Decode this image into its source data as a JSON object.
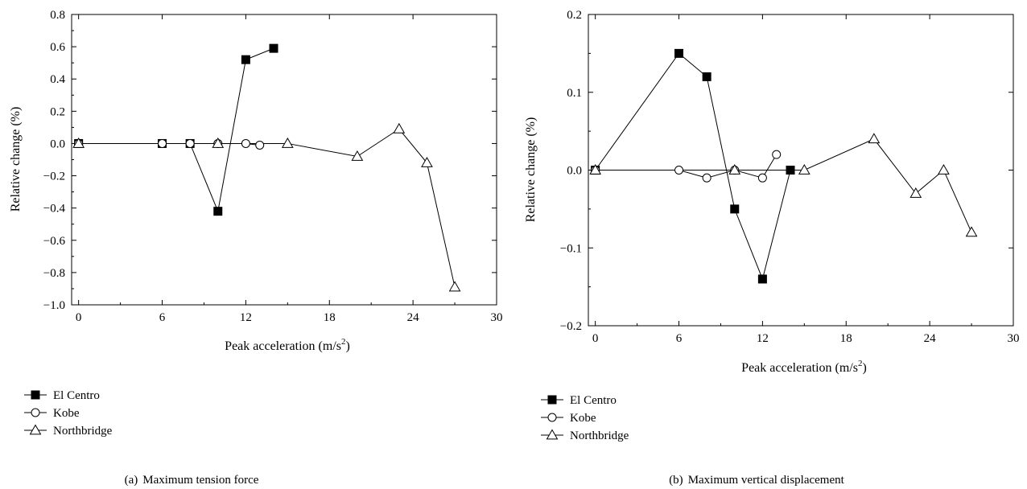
{
  "chart_data": [
    {
      "type": "line",
      "panel_label": "(a)",
      "caption": "Maximum tension force",
      "xlabel": "Peak acceleration (m/s",
      "xlabel_sup": "2",
      "xlabel_end": ")",
      "ylabel": "Relative change (%)",
      "xlim": [
        -0.5,
        30
      ],
      "ylim": [
        -1.0,
        0.8
      ],
      "xticks": [
        0,
        6,
        12,
        18,
        24,
        30
      ],
      "xtick_labels": [
        "0",
        "6",
        "12",
        "18",
        "24",
        "30"
      ],
      "yticks": [
        -1.0,
        -0.8,
        -0.6,
        -0.4,
        -0.2,
        0.0,
        0.2,
        0.4,
        0.6,
        0.8
      ],
      "ytick_labels": [
        "−1.0",
        "−0.8",
        "−0.6",
        "−0.4",
        "−0.2",
        "0.0",
        "0.2",
        "0.4",
        "0.6",
        "0.8"
      ],
      "grid": false,
      "legend_position": "below",
      "series": [
        {
          "name": "El Centro",
          "marker": "filled-square",
          "x": [
            0,
            6,
            8,
            10,
            12,
            14
          ],
          "y": [
            0,
            0,
            0,
            -0.42,
            0.52,
            0.59
          ]
        },
        {
          "name": "Kobe",
          "marker": "open-circle",
          "x": [
            0,
            6,
            8,
            10,
            12,
            13
          ],
          "y": [
            0,
            0,
            0,
            0,
            0,
            -0.01
          ]
        },
        {
          "name": "Northbridge",
          "marker": "open-triangle",
          "x": [
            0,
            10,
            15,
            20,
            23,
            25,
            27
          ],
          "y": [
            0,
            0,
            0,
            -0.08,
            0.09,
            -0.12,
            -0.89
          ]
        }
      ]
    },
    {
      "type": "line",
      "panel_label": "(b)",
      "caption": "Maximum vertical displacement",
      "xlabel": "Peak acceleration (m/s",
      "xlabel_sup": "2",
      "xlabel_end": ")",
      "ylabel": "Relative change (%)",
      "xlim": [
        -0.5,
        30
      ],
      "ylim": [
        -0.2,
        0.2
      ],
      "xticks": [
        0,
        6,
        12,
        18,
        24,
        30
      ],
      "xtick_labels": [
        "0",
        "6",
        "12",
        "18",
        "24",
        "30"
      ],
      "yticks": [
        -0.2,
        -0.1,
        0.0,
        0.1,
        0.2
      ],
      "ytick_labels": [
        "−0.2",
        "−0.1",
        "0.0",
        "0.1",
        "0.2"
      ],
      "grid": false,
      "legend_position": "below",
      "series": [
        {
          "name": "El Centro",
          "marker": "filled-square",
          "x": [
            0,
            6,
            8,
            10,
            12,
            14
          ],
          "y": [
            0,
            0.15,
            0.12,
            -0.05,
            -0.14,
            0
          ]
        },
        {
          "name": "Kobe",
          "marker": "open-circle",
          "x": [
            0,
            6,
            8,
            10,
            12,
            13
          ],
          "y": [
            0,
            0,
            -0.01,
            0,
            -0.01,
            0.02
          ]
        },
        {
          "name": "Northbridge",
          "marker": "open-triangle",
          "x": [
            0,
            10,
            15,
            20,
            23,
            25,
            27
          ],
          "y": [
            0,
            0,
            0,
            0.04,
            -0.03,
            0,
            -0.08
          ]
        }
      ]
    }
  ]
}
